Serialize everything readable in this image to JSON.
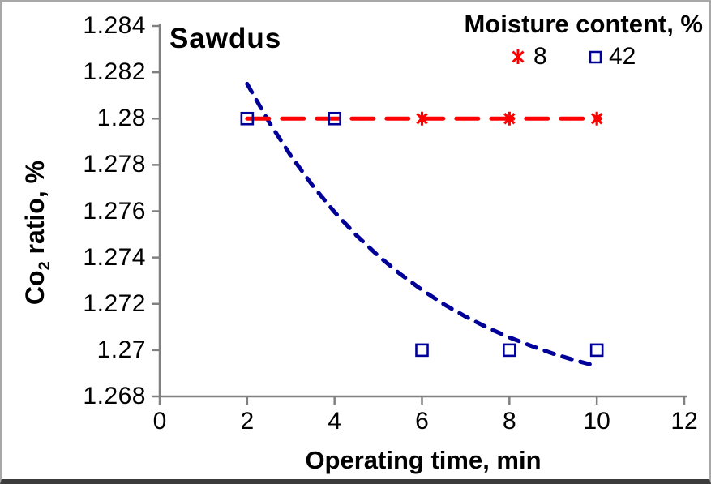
{
  "frame": {
    "background": "#ffffff",
    "border_color": "#a8a8a8",
    "bottom_bar_color": "#3c3c3c"
  },
  "chart_data": {
    "type": "scatter",
    "title": "Sawdus",
    "xlabel": "Operating time, min",
    "ylabel": "Co2 ratio, %",
    "ylabel_parts": {
      "pre": "Co",
      "sub": "2",
      "post": " ratio, %"
    },
    "xlim": [
      0,
      12
    ],
    "ylim": [
      1.268,
      1.284
    ],
    "grid": false,
    "axis_color": "#808080",
    "text_color": "#000000",
    "xticks": [
      {
        "value": 0,
        "label": "0"
      },
      {
        "value": 2,
        "label": "2"
      },
      {
        "value": 4,
        "label": "4"
      },
      {
        "value": 6,
        "label": "6"
      },
      {
        "value": 8,
        "label": "8"
      },
      {
        "value": 10,
        "label": "10"
      },
      {
        "value": 12,
        "label": "12"
      }
    ],
    "yticks": [
      {
        "value": 1.284,
        "label": "1.284"
      },
      {
        "value": 1.282,
        "label": "1.282"
      },
      {
        "value": 1.28,
        "label": "1.28"
      },
      {
        "value": 1.278,
        "label": "1.278"
      },
      {
        "value": 1.276,
        "label": "1.276"
      },
      {
        "value": 1.274,
        "label": "1.274"
      },
      {
        "value": 1.272,
        "label": "1.272"
      },
      {
        "value": 1.27,
        "label": "1.27"
      },
      {
        "value": 1.268,
        "label": "1.268"
      }
    ],
    "legend": {
      "title": "Moisture content, %",
      "position": "top-right",
      "entries": [
        {
          "label": "8",
          "marker": "asterisk",
          "color": "#ff0000"
        },
        {
          "label": "42",
          "marker": "open-square",
          "color": "#000099"
        }
      ]
    },
    "series": [
      {
        "name": "8",
        "moisture_percent": 8,
        "color": "#ff0000",
        "marker": "asterisk",
        "marker_points": {
          "x": [
            6,
            8,
            10
          ],
          "y": [
            1.28,
            1.28,
            1.28
          ]
        },
        "trendline": {
          "style": "dashed",
          "type": "linear-constant",
          "x": [
            2,
            10
          ],
          "y": [
            1.28,
            1.28
          ]
        }
      },
      {
        "name": "42",
        "moisture_percent": 42,
        "color": "#000099",
        "marker": "open-square",
        "marker_points": {
          "x": [
            2,
            4,
            6,
            8,
            10
          ],
          "y": [
            1.28,
            1.28,
            1.27,
            1.27,
            1.27
          ]
        },
        "trendline": {
          "style": "dashed",
          "type": "exponential-decay",
          "sampled": {
            "t": [
              2,
              2.5,
              3,
              3.5,
              4,
              4.5,
              5,
              5.5,
              6,
              6.5,
              7,
              7.5,
              8,
              8.5,
              9,
              9.5,
              10
            ],
            "v": [
              1.2815,
              1.27985,
              1.27839,
              1.2771,
              1.27596,
              1.27496,
              1.27407,
              1.27329,
              1.2726,
              1.27198,
              1.27145,
              1.27097,
              1.27055,
              1.27018,
              1.26985,
              1.26956,
              1.26931
            ]
          }
        }
      }
    ]
  }
}
